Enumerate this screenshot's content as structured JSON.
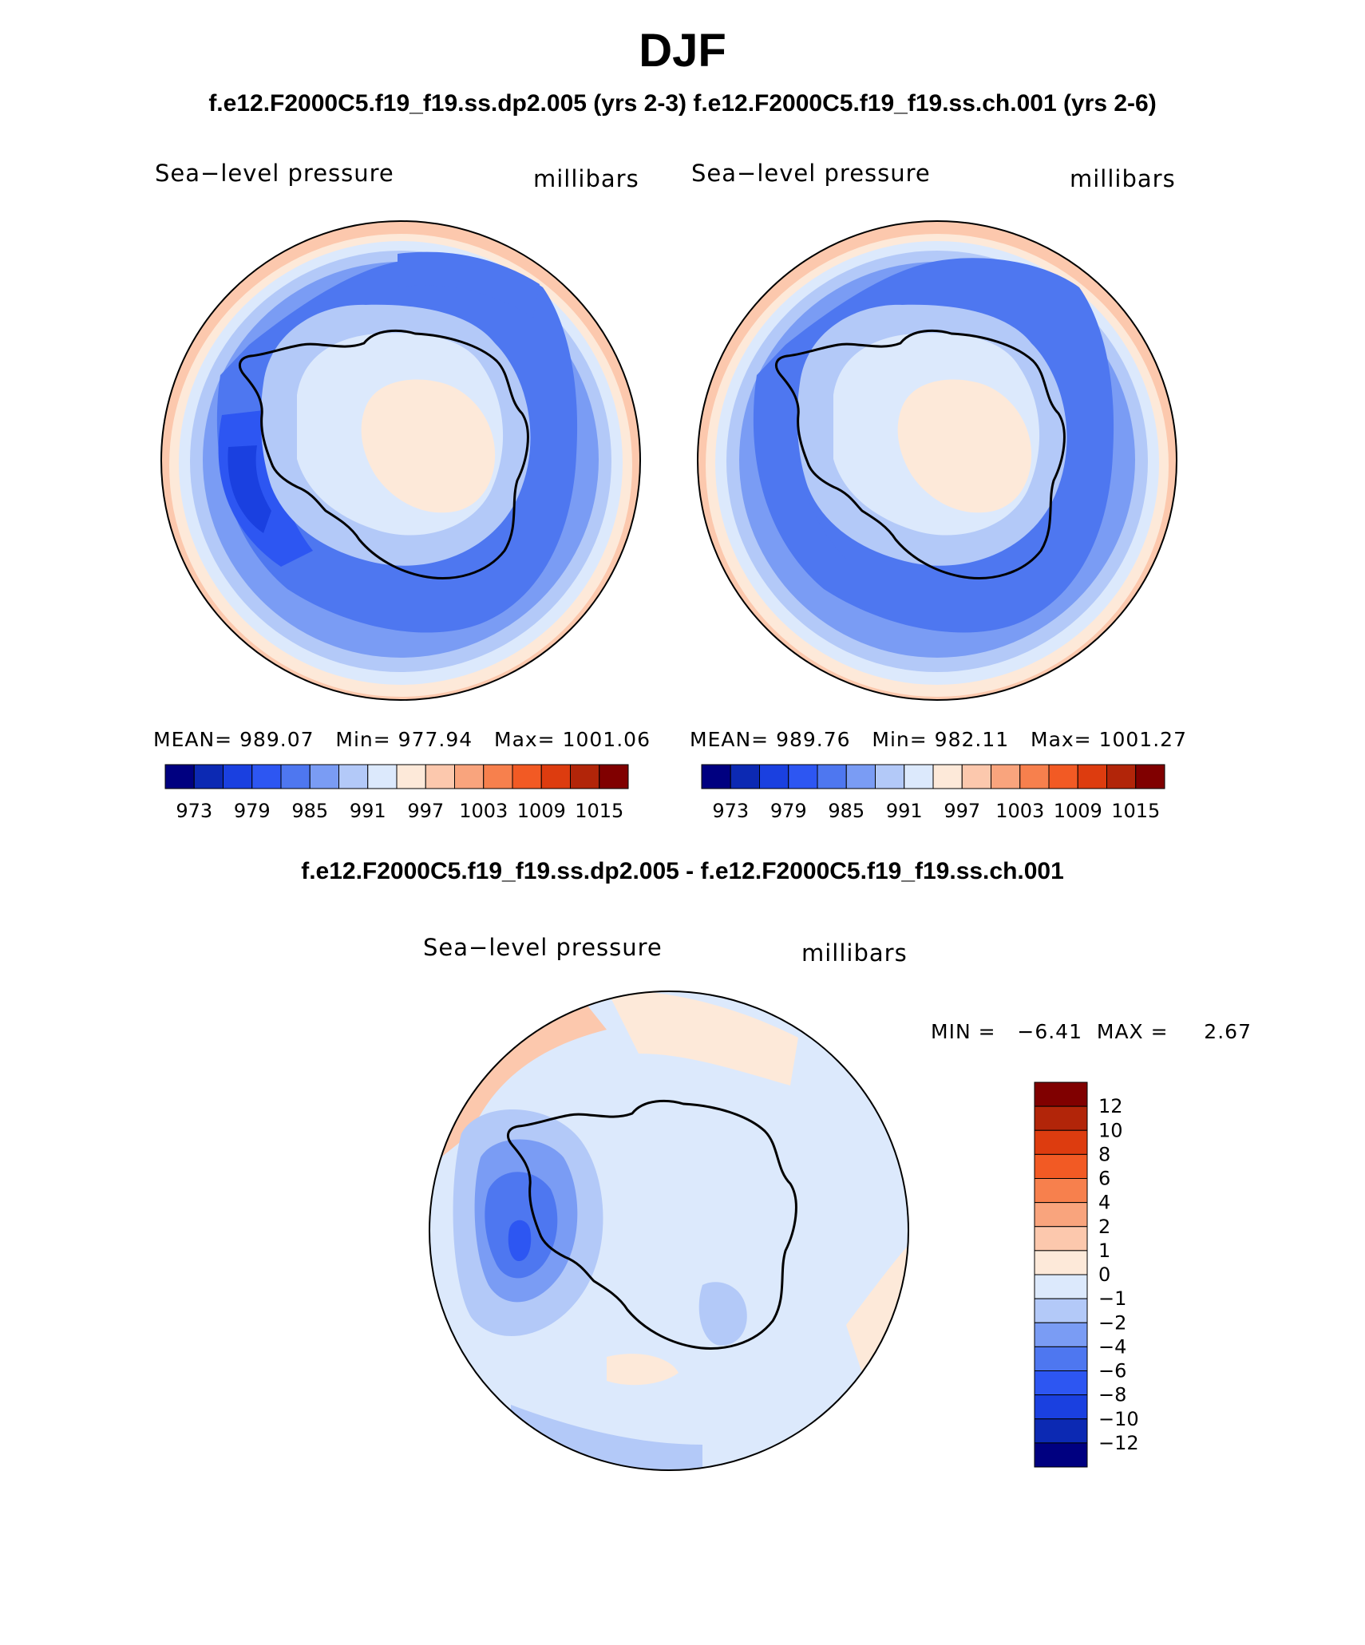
{
  "title": "DJF",
  "case_line": "f.e12.F2000C5.f19_f19.ss.dp2.005 (yrs 2-3)   f.e12.F2000C5.f19_f19.ss.ch.001 (yrs 2-6)",
  "diff_title": "f.e12.F2000C5.f19_f19.ss.dp2.005 - f.e12.F2000C5.f19_f19.ss.ch.001",
  "colors": {
    "abs_levels": [
      "#000080",
      "#0c29b3",
      "#1a40e0",
      "#2d56f2",
      "#4e77f0",
      "#7a9cf4",
      "#b3c9f8",
      "#dce9fc",
      "#fde9d9",
      "#fcc8ad",
      "#f9a47d",
      "#f7804d",
      "#f25a24",
      "#dd3c0f",
      "#b22509",
      "#800000"
    ],
    "diff_levels": [
      "#000080",
      "#0c29b3",
      "#1a40e0",
      "#2d56f2",
      "#4e77f0",
      "#7a9cf4",
      "#b3c9f8",
      "#dce9fc",
      "#fde9d9",
      "#fcc8ad",
      "#f9a47d",
      "#f7804d",
      "#f25a24",
      "#dd3c0f",
      "#b22509",
      "#800000"
    ]
  },
  "panels": [
    {
      "id": "case1",
      "variable": "Sea−level pressure",
      "units": "millibars",
      "mean_label": "MEAN=",
      "mean": "989.07",
      "min_label": "Min=",
      "min": "977.94",
      "max_label": "Max=",
      "max": "1001.06"
    },
    {
      "id": "case2",
      "variable": "Sea−level pressure",
      "units": "millibars",
      "mean_label": "MEAN=",
      "mean": "989.76",
      "min_label": "Min=",
      "min": "982.11",
      "max_label": "Max=",
      "max": "1001.27"
    },
    {
      "id": "diff",
      "variable": "Sea−level pressure",
      "units": "millibars",
      "minmax_text": "MIN =   −6.41  MAX =     2.67"
    }
  ],
  "chart_data": [
    {
      "type": "heatmap",
      "projection": "south-polar stereographic",
      "title": "f.e12.F2000C5.f19_f19.ss.dp2.005 (yrs 2-3)",
      "variable": "Sea−level pressure",
      "units": "millibars",
      "mean": 989.07,
      "min": 977.94,
      "max": 1001.06,
      "contour_levels": [
        973,
        976,
        979,
        982,
        985,
        988,
        991,
        994,
        997,
        1000,
        1003,
        1006,
        1009,
        1012,
        1015
      ],
      "colorbar_tick_labels": [
        "973",
        "979",
        "985",
        "991",
        "997",
        "1003",
        "1009",
        "1015"
      ]
    },
    {
      "type": "heatmap",
      "projection": "south-polar stereographic",
      "title": "f.e12.F2000C5.f19_f19.ss.ch.001 (yrs 2-6)",
      "variable": "Sea−level pressure",
      "units": "millibars",
      "mean": 989.76,
      "min": 982.11,
      "max": 1001.27,
      "contour_levels": [
        973,
        976,
        979,
        982,
        985,
        988,
        991,
        994,
        997,
        1000,
        1003,
        1006,
        1009,
        1012,
        1015
      ],
      "colorbar_tick_labels": [
        "973",
        "979",
        "985",
        "991",
        "997",
        "1003",
        "1009",
        "1015"
      ]
    },
    {
      "type": "heatmap",
      "projection": "south-polar stereographic",
      "title": "f.e12.F2000C5.f19_f19.ss.dp2.005 - f.e12.F2000C5.f19_f19.ss.ch.001",
      "variable": "Sea−level pressure",
      "units": "millibars",
      "min": -6.41,
      "max": 2.67,
      "contour_levels": [
        -12,
        -10,
        -8,
        -6,
        -4,
        -2,
        -1,
        0,
        1,
        2,
        4,
        6,
        8,
        10,
        12
      ],
      "colorbar_tick_labels": [
        "12",
        "10",
        "8",
        "6",
        "4",
        "2",
        "1",
        "0",
        "−1",
        "−2",
        "−4",
        "−6",
        "−8",
        "−10",
        "−12"
      ]
    }
  ]
}
